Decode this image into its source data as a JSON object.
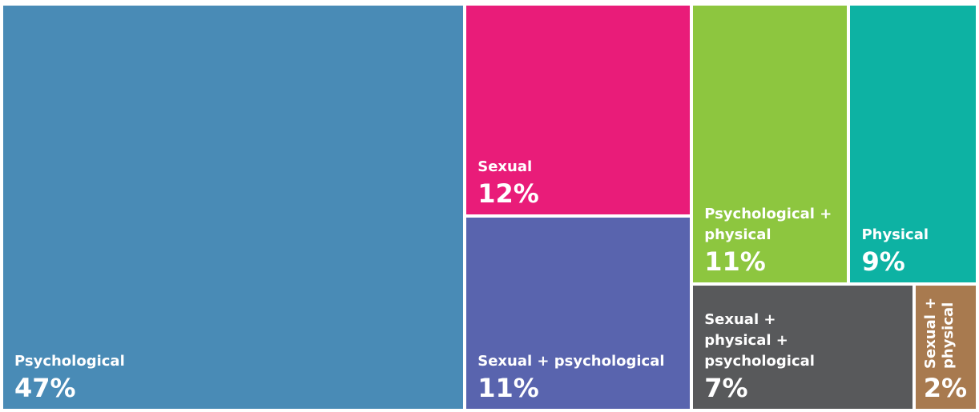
{
  "chart_data": {
    "type": "treemap",
    "categories": [
      "Psychological",
      "Sexual",
      "Sexual + psychological",
      "Psychological + physical",
      "Physical",
      "Sexual + physical + psychological",
      "Sexual + physical"
    ],
    "values": [
      47,
      12,
      11,
      11,
      9,
      7,
      2
    ],
    "value_labels": [
      "47%",
      "12%",
      "11%",
      "11%",
      "9%",
      "7%",
      "2%"
    ],
    "colors": [
      "#498bb6",
      "#e91c79",
      "#5964ae",
      "#8dc63f",
      "#0db2a3",
      "#58595b",
      "#a87a4f"
    ]
  }
}
